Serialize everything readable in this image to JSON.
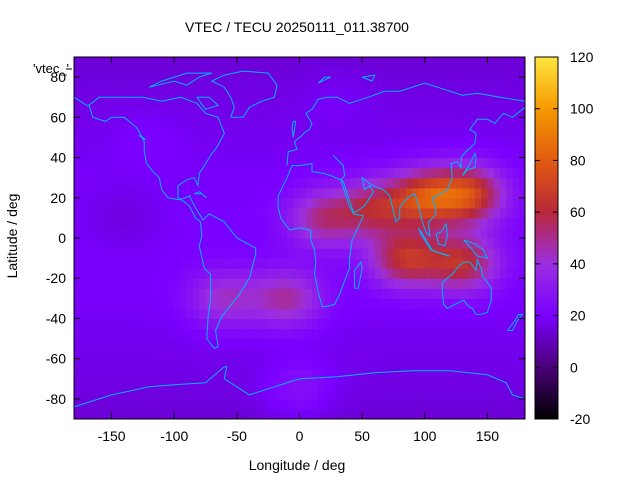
{
  "chart_data": {
    "type": "heatmap",
    "title": "VTEC / TECU 20250111_011.38700",
    "xlabel": "Longitude / deg",
    "ylabel": "Latitude / deg",
    "xlim": [
      -180,
      180
    ],
    "ylim": [
      -90,
      90
    ],
    "x_ticks": [
      -150,
      -100,
      -50,
      0,
      50,
      100,
      150
    ],
    "y_ticks": [
      -80,
      -60,
      -40,
      -20,
      0,
      20,
      40,
      60,
      80
    ],
    "colorbar": {
      "range": [
        -20,
        120
      ],
      "ticks": [
        -20,
        0,
        20,
        40,
        60,
        80,
        100,
        120
      ],
      "colors": [
        "#000000",
        "#4b0078",
        "#7a00ff",
        "#9b2fe0",
        "#b8283a",
        "#e25a10",
        "#f59a00",
        "#ffe640"
      ]
    },
    "legend_label": "'vtec_'",
    "overlay": "coastlines",
    "coast_color": "#00b4ff",
    "features": [
      {
        "lon": 20,
        "lat": 10,
        "value": 55
      },
      {
        "lon": 60,
        "lat": 15,
        "value": 60
      },
      {
        "lon": 100,
        "lat": 20,
        "value": 80
      },
      {
        "lon": 135,
        "lat": 22,
        "value": 82
      },
      {
        "lon": 85,
        "lat": -10,
        "value": 72
      },
      {
        "lon": 130,
        "lat": -12,
        "value": 70
      },
      {
        "lon": -10,
        "lat": -30,
        "value": 52
      },
      {
        "lon": -60,
        "lat": -30,
        "value": 45
      },
      {
        "lon": -140,
        "lat": 10,
        "value": 8
      },
      {
        "lon": -120,
        "lat": 50,
        "value": 18
      },
      {
        "lon": 30,
        "lat": 70,
        "value": 18
      },
      {
        "lon": 0,
        "lat": -75,
        "value": 28
      }
    ]
  }
}
